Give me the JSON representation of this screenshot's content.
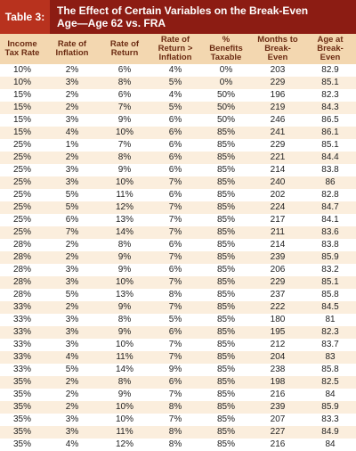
{
  "header": {
    "label": "Table 3:",
    "title": "The Effect of Certain Variables on the Break-Even Age—Age 62 vs. FRA"
  },
  "table": {
    "columns": [
      "Income Tax Rate",
      "Rate of Inflation",
      "Rate of Return",
      "Rate of Return > Inflation",
      "% Benefits Taxable",
      "Months to Break-Even",
      "Age at Break-Even"
    ],
    "rows": [
      [
        "10%",
        "2%",
        "6%",
        "4%",
        "0%",
        "203",
        "82.9"
      ],
      [
        "10%",
        "3%",
        "8%",
        "5%",
        "0%",
        "229",
        "85.1"
      ],
      [
        "15%",
        "2%",
        "6%",
        "4%",
        "50%",
        "196",
        "82.3"
      ],
      [
        "15%",
        "2%",
        "7%",
        "5%",
        "50%",
        "219",
        "84.3"
      ],
      [
        "15%",
        "3%",
        "9%",
        "6%",
        "50%",
        "246",
        "86.5"
      ],
      [
        "15%",
        "4%",
        "10%",
        "6%",
        "85%",
        "241",
        "86.1"
      ],
      [
        "25%",
        "1%",
        "7%",
        "6%",
        "85%",
        "229",
        "85.1"
      ],
      [
        "25%",
        "2%",
        "8%",
        "6%",
        "85%",
        "221",
        "84.4"
      ],
      [
        "25%",
        "3%",
        "9%",
        "6%",
        "85%",
        "214",
        "83.8"
      ],
      [
        "25%",
        "3%",
        "10%",
        "7%",
        "85%",
        "240",
        "86"
      ],
      [
        "25%",
        "5%",
        "11%",
        "6%",
        "85%",
        "202",
        "82.8"
      ],
      [
        "25%",
        "5%",
        "12%",
        "7%",
        "85%",
        "224",
        "84.7"
      ],
      [
        "25%",
        "6%",
        "13%",
        "7%",
        "85%",
        "217",
        "84.1"
      ],
      [
        "25%",
        "7%",
        "14%",
        "7%",
        "85%",
        "211",
        "83.6"
      ],
      [
        "28%",
        "2%",
        "8%",
        "6%",
        "85%",
        "214",
        "83.8"
      ],
      [
        "28%",
        "2%",
        "9%",
        "7%",
        "85%",
        "239",
        "85.9"
      ],
      [
        "28%",
        "3%",
        "9%",
        "6%",
        "85%",
        "206",
        "83.2"
      ],
      [
        "28%",
        "3%",
        "10%",
        "7%",
        "85%",
        "229",
        "85.1"
      ],
      [
        "28%",
        "5%",
        "13%",
        "8%",
        "85%",
        "237",
        "85.8"
      ],
      [
        "33%",
        "2%",
        "9%",
        "7%",
        "85%",
        "222",
        "84.5"
      ],
      [
        "33%",
        "3%",
        "8%",
        "5%",
        "85%",
        "180",
        "81"
      ],
      [
        "33%",
        "3%",
        "9%",
        "6%",
        "85%",
        "195",
        "82.3"
      ],
      [
        "33%",
        "3%",
        "10%",
        "7%",
        "85%",
        "212",
        "83.7"
      ],
      [
        "33%",
        "4%",
        "11%",
        "7%",
        "85%",
        "204",
        "83"
      ],
      [
        "33%",
        "5%",
        "14%",
        "9%",
        "85%",
        "238",
        "85.8"
      ],
      [
        "35%",
        "2%",
        "8%",
        "6%",
        "85%",
        "198",
        "82.5"
      ],
      [
        "35%",
        "2%",
        "9%",
        "7%",
        "85%",
        "216",
        "84"
      ],
      [
        "35%",
        "2%",
        "10%",
        "8%",
        "85%",
        "239",
        "85.9"
      ],
      [
        "35%",
        "3%",
        "10%",
        "7%",
        "85%",
        "207",
        "83.3"
      ],
      [
        "35%",
        "3%",
        "11%",
        "8%",
        "85%",
        "227",
        "84.9"
      ],
      [
        "35%",
        "4%",
        "12%",
        "8%",
        "85%",
        "216",
        "84"
      ]
    ]
  }
}
